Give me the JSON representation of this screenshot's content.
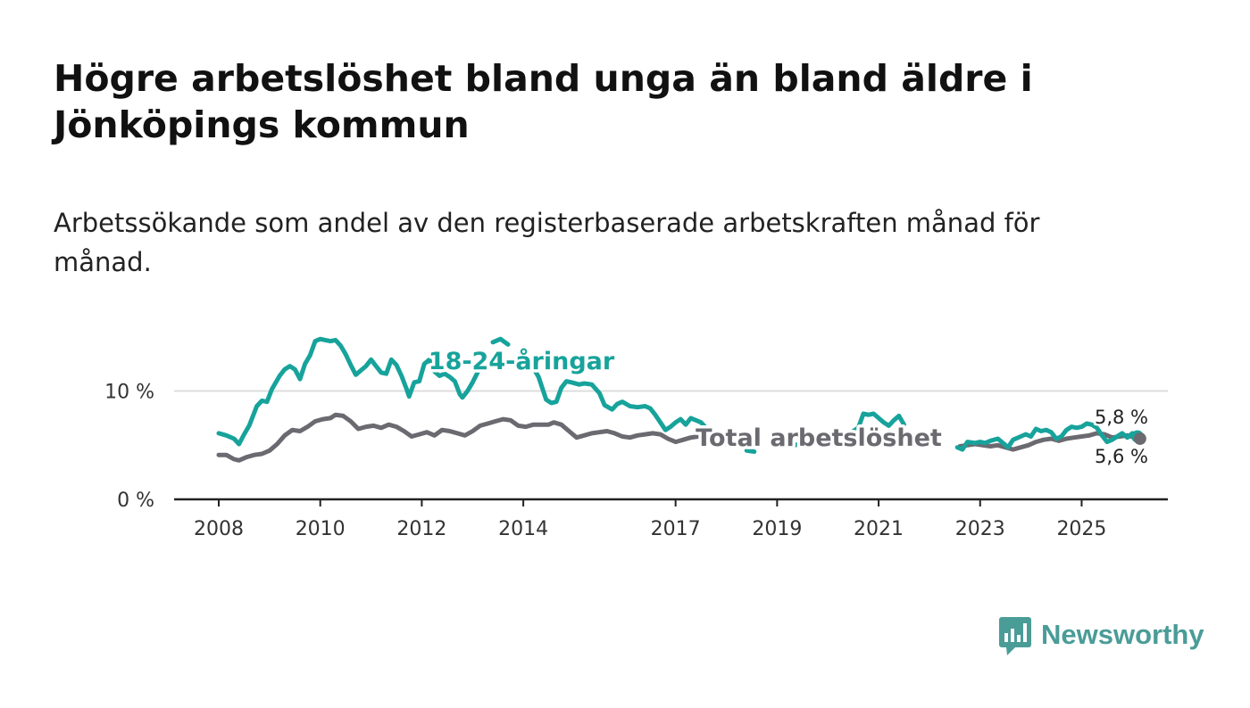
{
  "header": {
    "title": "Högre arbetslöshet bland unga än bland äldre i Jönköpings kommun",
    "subtitle": "Arbetssökande som andel av den registerbaserade arbetskraften månad för månad."
  },
  "brand": {
    "name": "Newsworthy",
    "icon": "bar-chart-speech-bubble-icon",
    "color": "#4a9c97"
  },
  "chart_data": {
    "type": "line",
    "title": "Högre arbetslöshet bland unga än bland äldre i Jönköpings kommun",
    "subtitle": "Arbetssökande som andel av den registerbaserade arbetskraften månad för månad.",
    "xlabel": "",
    "ylabel": "",
    "xlim": [
      2008.0,
      2026.6
    ],
    "ylim": [
      0,
      16
    ],
    "y_ticks": [
      {
        "value": 0,
        "label": "0 %"
      },
      {
        "value": 10,
        "label": "10 %"
      }
    ],
    "x_ticks": [
      {
        "value": 2008,
        "label": "2008"
      },
      {
        "value": 2010,
        "label": "2010"
      },
      {
        "value": 2012,
        "label": "2012"
      },
      {
        "value": 2014,
        "label": "2014"
      },
      {
        "value": 2017,
        "label": "2017"
      },
      {
        "value": 2019,
        "label": "2019"
      },
      {
        "value": 2021,
        "label": "2021"
      },
      {
        "value": 2023,
        "label": "2023"
      },
      {
        "value": 2025,
        "label": "2025"
      }
    ],
    "grid": {
      "y": true,
      "x": false
    },
    "series": [
      {
        "name": "18-24-åringar",
        "color": "#17a39b",
        "end_label": "5,8 %",
        "segments": [
          [
            [
              2008.0,
              6.1
            ],
            [
              2008.15,
              5.9
            ],
            [
              2008.3,
              5.6
            ],
            [
              2008.4,
              5.1
            ],
            [
              2008.5,
              6.0
            ],
            [
              2008.6,
              6.8
            ],
            [
              2008.75,
              8.6
            ],
            [
              2008.85,
              9.1
            ],
            [
              2008.95,
              9.0
            ],
            [
              2009.05,
              10.2
            ],
            [
              2009.2,
              11.4
            ],
            [
              2009.3,
              12.0
            ],
            [
              2009.4,
              12.3
            ],
            [
              2009.5,
              12.0
            ],
            [
              2009.6,
              11.1
            ],
            [
              2009.7,
              12.5
            ],
            [
              2009.8,
              13.3
            ],
            [
              2009.9,
              14.6
            ],
            [
              2010.0,
              14.8
            ],
            [
              2010.1,
              14.7
            ],
            [
              2010.2,
              14.6
            ],
            [
              2010.3,
              14.7
            ],
            [
              2010.4,
              14.2
            ],
            [
              2010.5,
              13.4
            ],
            [
              2010.6,
              12.4
            ],
            [
              2010.7,
              11.5
            ],
            [
              2010.8,
              11.9
            ],
            [
              2010.9,
              12.3
            ],
            [
              2011.0,
              12.9
            ],
            [
              2011.1,
              12.3
            ],
            [
              2011.2,
              11.7
            ],
            [
              2011.3,
              11.6
            ],
            [
              2011.4,
              12.9
            ],
            [
              2011.5,
              12.4
            ],
            [
              2011.6,
              11.4
            ],
            [
              2011.7,
              10.2
            ],
            [
              2011.75,
              9.5
            ],
            [
              2011.85,
              10.8
            ],
            [
              2011.95,
              10.9
            ],
            [
              2012.05,
              12.5
            ],
            [
              2012.15,
              12.9
            ],
            [
              2012.25,
              11.8
            ],
            [
              2012.35,
              11.4
            ],
            [
              2012.45,
              11.6
            ],
            [
              2012.55,
              11.3
            ],
            [
              2012.65,
              10.9
            ],
            [
              2012.75,
              9.7
            ],
            [
              2012.8,
              9.4
            ],
            [
              2012.9,
              10.0
            ],
            [
              2013.0,
              10.8
            ],
            [
              2013.1,
              11.7
            ]
          ],
          [
            [
              2013.4,
              14.5
            ],
            [
              2013.55,
              14.8
            ],
            [
              2013.7,
              14.3
            ]
          ],
          [
            [
              2014.2,
              12.1
            ],
            [
              2014.3,
              11.3
            ],
            [
              2014.45,
              9.2
            ],
            [
              2014.55,
              8.9
            ],
            [
              2014.65,
              9.0
            ],
            [
              2014.75,
              10.3
            ],
            [
              2014.85,
              10.9
            ],
            [
              2014.95,
              10.8
            ],
            [
              2015.1,
              10.6
            ],
            [
              2015.2,
              10.7
            ],
            [
              2015.35,
              10.6
            ],
            [
              2015.5,
              9.8
            ],
            [
              2015.6,
              8.7
            ],
            [
              2015.75,
              8.3
            ],
            [
              2015.85,
              8.8
            ],
            [
              2015.95,
              9.0
            ],
            [
              2016.1,
              8.6
            ],
            [
              2016.25,
              8.5
            ],
            [
              2016.4,
              8.6
            ],
            [
              2016.5,
              8.4
            ],
            [
              2016.6,
              7.8
            ],
            [
              2016.7,
              7.1
            ],
            [
              2016.8,
              6.4
            ],
            [
              2016.9,
              6.7
            ],
            [
              2017.0,
              7.1
            ],
            [
              2017.1,
              7.4
            ],
            [
              2017.2,
              6.9
            ],
            [
              2017.3,
              7.5
            ],
            [
              2017.4,
              7.3
            ],
            [
              2017.5,
              7.1
            ],
            [
              2017.6,
              6.6
            ],
            [
              2017.7,
              6.0
            ],
            [
              2017.75,
              5.9
            ]
          ],
          [
            [
              2018.4,
              4.5
            ],
            [
              2018.55,
              4.4
            ]
          ],
          [
            [
              2019.35,
              5.0
            ],
            [
              2019.5,
              5.2
            ]
          ],
          [
            [
              2020.5,
              6.3
            ],
            [
              2020.6,
              6.6
            ],
            [
              2020.7,
              7.9
            ],
            [
              2020.8,
              7.8
            ],
            [
              2020.9,
              7.9
            ],
            [
              2021.0,
              7.5
            ],
            [
              2021.1,
              7.1
            ],
            [
              2021.2,
              6.8
            ],
            [
              2021.3,
              7.3
            ],
            [
              2021.4,
              7.7
            ],
            [
              2021.5,
              6.9
            ]
          ],
          [
            [
              2022.55,
              4.8
            ],
            [
              2022.65,
              4.6
            ],
            [
              2022.75,
              5.3
            ],
            [
              2022.9,
              5.2
            ],
            [
              2023.0,
              5.3
            ],
            [
              2023.1,
              5.2
            ],
            [
              2023.2,
              5.4
            ],
            [
              2023.35,
              5.6
            ],
            [
              2023.45,
              5.2
            ],
            [
              2023.55,
              4.8
            ],
            [
              2023.65,
              5.5
            ],
            [
              2023.8,
              5.8
            ],
            [
              2023.9,
              6.0
            ],
            [
              2024.0,
              5.8
            ],
            [
              2024.1,
              6.5
            ],
            [
              2024.2,
              6.3
            ],
            [
              2024.3,
              6.4
            ],
            [
              2024.4,
              6.2
            ],
            [
              2024.5,
              5.6
            ],
            [
              2024.6,
              5.8
            ],
            [
              2024.7,
              6.4
            ],
            [
              2024.8,
              6.7
            ],
            [
              2024.9,
              6.6
            ],
            [
              2025.0,
              6.7
            ],
            [
              2025.1,
              7.0
            ],
            [
              2025.2,
              6.9
            ],
            [
              2025.3,
              6.6
            ],
            [
              2025.4,
              5.9
            ],
            [
              2025.5,
              5.3
            ],
            [
              2025.6,
              5.5
            ],
            [
              2025.7,
              5.8
            ],
            [
              2025.8,
              6.1
            ],
            [
              2025.9,
              5.7
            ],
            [
              2026.0,
              6.1
            ],
            [
              2026.1,
              5.8
            ]
          ]
        ]
      },
      {
        "name": "Total arbetslöshet",
        "color": "#6b6a70",
        "end_label": "5,6 %",
        "segments": [
          [
            [
              2008.0,
              4.1
            ],
            [
              2008.15,
              4.1
            ],
            [
              2008.3,
              3.7
            ],
            [
              2008.4,
              3.6
            ],
            [
              2008.55,
              3.9
            ],
            [
              2008.7,
              4.1
            ],
            [
              2008.85,
              4.2
            ],
            [
              2009.0,
              4.5
            ],
            [
              2009.15,
              5.1
            ],
            [
              2009.3,
              5.9
            ],
            [
              2009.45,
              6.4
            ],
            [
              2009.6,
              6.3
            ],
            [
              2009.75,
              6.7
            ],
            [
              2009.9,
              7.2
            ],
            [
              2010.05,
              7.4
            ],
            [
              2010.2,
              7.5
            ],
            [
              2010.3,
              7.8
            ],
            [
              2010.45,
              7.7
            ],
            [
              2010.6,
              7.2
            ],
            [
              2010.75,
              6.5
            ],
            [
              2010.9,
              6.7
            ],
            [
              2011.05,
              6.8
            ],
            [
              2011.2,
              6.6
            ],
            [
              2011.35,
              6.9
            ],
            [
              2011.5,
              6.7
            ],
            [
              2011.65,
              6.3
            ],
            [
              2011.8,
              5.8
            ],
            [
              2011.95,
              6.0
            ],
            [
              2012.1,
              6.2
            ],
            [
              2012.25,
              5.9
            ],
            [
              2012.4,
              6.4
            ],
            [
              2012.55,
              6.3
            ],
            [
              2012.7,
              6.1
            ],
            [
              2012.85,
              5.9
            ],
            [
              2013.0,
              6.3
            ],
            [
              2013.15,
              6.8
            ],
            [
              2013.3,
              7.0
            ],
            [
              2013.45,
              7.2
            ],
            [
              2013.6,
              7.4
            ],
            [
              2013.75,
              7.3
            ],
            [
              2013.9,
              6.8
            ],
            [
              2014.05,
              6.7
            ],
            [
              2014.2,
              6.9
            ],
            [
              2014.35,
              6.9
            ],
            [
              2014.5,
              6.9
            ],
            [
              2014.6,
              7.1
            ],
            [
              2014.75,
              6.9
            ],
            [
              2014.9,
              6.3
            ],
            [
              2015.05,
              5.7
            ],
            [
              2015.2,
              5.9
            ],
            [
              2015.35,
              6.1
            ],
            [
              2015.5,
              6.2
            ],
            [
              2015.65,
              6.3
            ],
            [
              2015.8,
              6.1
            ],
            [
              2015.95,
              5.8
            ],
            [
              2016.1,
              5.7
            ],
            [
              2016.25,
              5.9
            ],
            [
              2016.4,
              6.0
            ],
            [
              2016.55,
              6.1
            ],
            [
              2016.7,
              6.0
            ],
            [
              2016.85,
              5.6
            ],
            [
              2017.0,
              5.3
            ],
            [
              2017.15,
              5.5
            ],
            [
              2017.3,
              5.7
            ],
            [
              2017.45,
              5.8
            ],
            [
              2017.6,
              6.0
            ],
            [
              2017.75,
              5.8
            ],
            [
              2017.9,
              5.4
            ],
            [
              2018.0,
              5.1
            ]
          ],
          [
            [
              2022.6,
              4.9
            ],
            [
              2022.75,
              5.0
            ],
            [
              2022.9,
              5.1
            ],
            [
              2023.05,
              5.0
            ],
            [
              2023.2,
              4.9
            ],
            [
              2023.35,
              5.0
            ],
            [
              2023.5,
              4.8
            ],
            [
              2023.65,
              4.6
            ],
            [
              2023.8,
              4.8
            ],
            [
              2023.95,
              5.0
            ],
            [
              2024.1,
              5.3
            ],
            [
              2024.25,
              5.5
            ],
            [
              2024.4,
              5.6
            ],
            [
              2024.55,
              5.4
            ],
            [
              2024.7,
              5.6
            ],
            [
              2024.85,
              5.7
            ],
            [
              2025.0,
              5.8
            ],
            [
              2025.15,
              5.9
            ],
            [
              2025.3,
              6.1
            ],
            [
              2025.45,
              6.0
            ],
            [
              2025.6,
              5.7
            ],
            [
              2025.75,
              5.8
            ],
            [
              2025.9,
              5.9
            ],
            [
              2026.05,
              5.7
            ],
            [
              2026.15,
              5.6
            ]
          ]
        ]
      }
    ]
  }
}
